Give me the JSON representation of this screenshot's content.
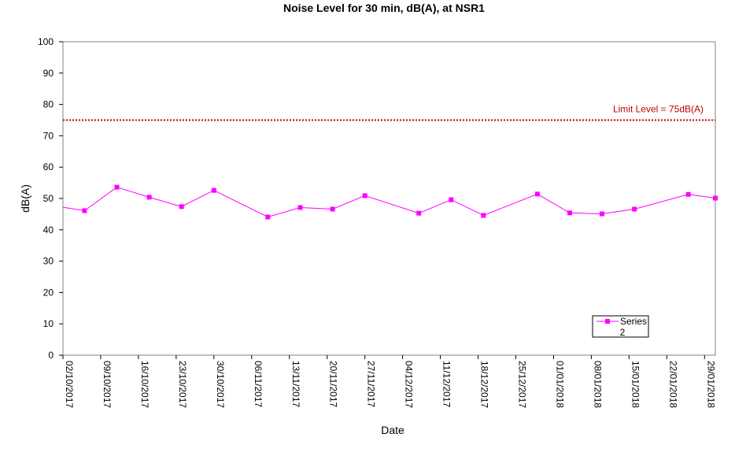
{
  "chart_data": {
    "type": "line",
    "title": "Noise Level for 30 min, dB(A), at NSR1",
    "xlabel": "Date",
    "ylabel": "dB(A)",
    "ylim": [
      0,
      100
    ],
    "yticks": [
      0,
      10,
      20,
      30,
      40,
      50,
      60,
      70,
      80,
      90,
      100
    ],
    "xlim": [
      "2017-10-02",
      "2018-01-31"
    ],
    "xtick_labels": [
      "02/10/2017",
      "09/10/2017",
      "16/10/2017",
      "23/10/2017",
      "30/10/2017",
      "06/11/2017",
      "13/11/2017",
      "20/11/2017",
      "27/11/2017",
      "04/12/2017",
      "11/12/2017",
      "18/12/2017",
      "25/12/2017",
      "01/01/2018",
      "08/01/2018",
      "15/01/2018",
      "22/01/2018",
      "29/01/2018"
    ],
    "grid": false,
    "legend": {
      "position": "bottom-right",
      "entries": [
        "Series 2"
      ]
    },
    "series": [
      {
        "name": "Series 2",
        "color": "#ff00ff",
        "marker": "square",
        "points": [
          {
            "x": "2017-10-02",
            "y": 47.2
          },
          {
            "x": "2017-10-06",
            "y": 46.1
          },
          {
            "x": "2017-10-12",
            "y": 53.6
          },
          {
            "x": "2017-10-18",
            "y": 50.4
          },
          {
            "x": "2017-10-24",
            "y": 47.4
          },
          {
            "x": "2017-10-30",
            "y": 52.6
          },
          {
            "x": "2017-11-09",
            "y": 44.1
          },
          {
            "x": "2017-11-15",
            "y": 47.1
          },
          {
            "x": "2017-11-21",
            "y": 46.6
          },
          {
            "x": "2017-11-27",
            "y": 50.9
          },
          {
            "x": "2017-12-07",
            "y": 45.3
          },
          {
            "x": "2017-12-13",
            "y": 49.6
          },
          {
            "x": "2017-12-19",
            "y": 44.6
          },
          {
            "x": "2017-12-29",
            "y": 51.4
          },
          {
            "x": "2018-01-04",
            "y": 45.4
          },
          {
            "x": "2018-01-10",
            "y": 45.1
          },
          {
            "x": "2018-01-16",
            "y": 46.6
          },
          {
            "x": "2018-01-26",
            "y": 51.3
          },
          {
            "x": "2018-01-31",
            "y": 50.1
          }
        ]
      }
    ],
    "limit_line": {
      "value": 75,
      "label": "Limit Level = 75dB(A)",
      "color": "#c00000",
      "style": "dotted"
    }
  }
}
